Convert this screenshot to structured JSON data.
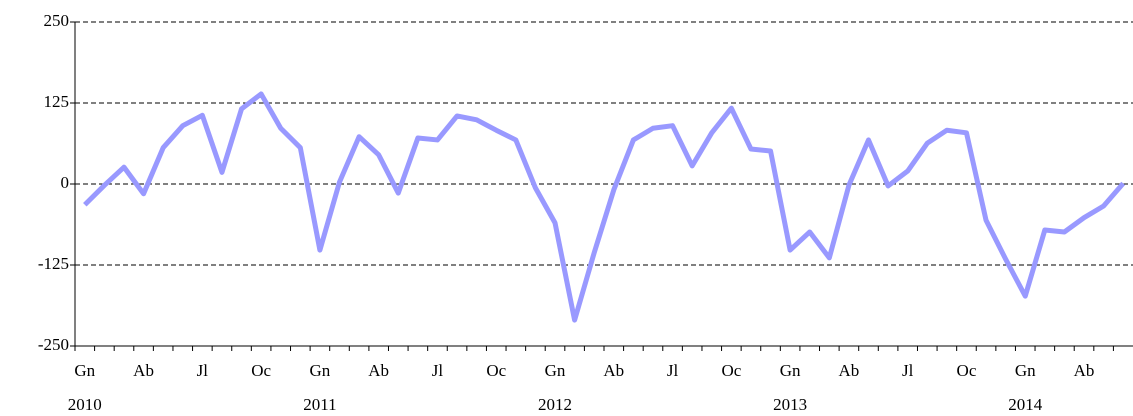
{
  "chart_data": {
    "type": "line",
    "categories": [
      "Gn",
      null,
      null,
      "Ab",
      null,
      null,
      "Jl",
      null,
      null,
      "Oc",
      null,
      null,
      "Gn",
      null,
      null,
      "Ab",
      null,
      null,
      "Jl",
      null,
      null,
      "Oc",
      null,
      null,
      "Gn",
      null,
      null,
      "Ab",
      null,
      null,
      "Jl",
      null,
      null,
      "Oc",
      null,
      null,
      "Gn",
      null,
      null,
      "Ab",
      null,
      null,
      "Jl",
      null,
      null,
      "Oc",
      null,
      null,
      "Gn",
      null,
      null,
      "Ab",
      null,
      null
    ],
    "years": [
      "2010",
      null,
      null,
      null,
      null,
      null,
      null,
      null,
      null,
      null,
      null,
      null,
      "2011",
      null,
      null,
      null,
      null,
      null,
      null,
      null,
      null,
      null,
      null,
      null,
      "2012",
      null,
      null,
      null,
      null,
      null,
      null,
      null,
      null,
      null,
      null,
      null,
      "2013",
      null,
      null,
      null,
      null,
      null,
      null,
      null,
      null,
      null,
      null,
      null,
      "2014",
      null,
      null,
      null,
      null,
      null
    ],
    "series": [
      {
        "color": "#9999ff",
        "values": [
          -32,
          -2,
          26,
          -15,
          56,
          90,
          106,
          18,
          116,
          139,
          86,
          56,
          -102,
          3,
          73,
          45,
          -14,
          71,
          68,
          105,
          99,
          83,
          68,
          -6,
          -60,
          -210,
          -106,
          -9,
          68,
          86,
          90,
          28,
          79,
          117,
          54,
          51,
          -102,
          -74,
          -114,
          -2,
          68,
          -3,
          20,
          63,
          83,
          79,
          -56,
          -116,
          -173,
          -71,
          -74,
          -52,
          -34,
          1
        ]
      }
    ],
    "ylim": [
      -250,
      250
    ],
    "yticks": [
      -250,
      -125,
      0,
      125,
      250
    ],
    "grid": true
  }
}
